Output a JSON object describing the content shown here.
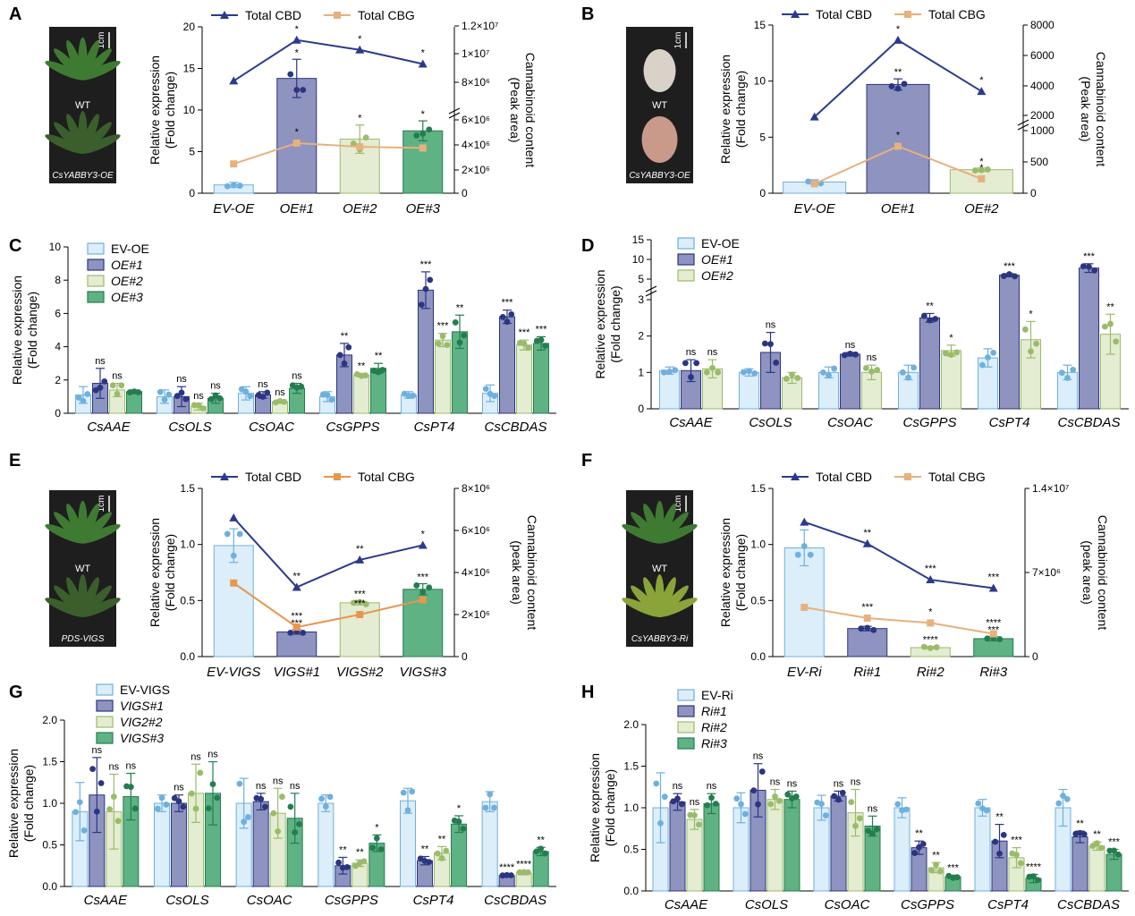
{
  "colors": {
    "cbd_line": "#2b3a8c",
    "cbg_line": "#e7b17d",
    "cbg_line_EF": "#e8964f",
    "ev": "#dbeefa",
    "ev_edge": "#6fb0dd",
    "g1": "#8e93bf",
    "g1_edge": "#2b3580",
    "g2": "#e4ecd2",
    "g2_edge": "#9bbb6a",
    "g3": "#5fb283",
    "g3_edge": "#237d4f",
    "photo_bg": "#1e1e1e",
    "leaf": "#3f7a33"
  },
  "icons": {
    "scale_bar": "scale-bar-icon",
    "plant_photo": "plant-photo-icon"
  },
  "labels": {
    "total_cbd": "Total CBD",
    "total_cbg": "Total CBG",
    "rel_expr": "Relative expression",
    "fold_change": "(Fold change)",
    "cannabinoid_content": "Cannabinoid content",
    "peak_area_A": "(Peak area)",
    "peak_area_E": "(peak area)",
    "scale": "1cm"
  },
  "chart_data": [
    {
      "panel": "A",
      "type": "bar",
      "photo_labels": [
        "WT",
        "CsYABBY3-OE"
      ],
      "categories": [
        "EV-OE",
        "OE#1",
        "OE#2",
        "OE#3"
      ],
      "ylabel": "Relative expression (Fold change)",
      "y2label": "Cannabinoid content (Peak area)",
      "ylim": [
        0,
        20
      ],
      "yticks": [
        0,
        5,
        10,
        15,
        20
      ],
      "y2ticks": [
        "0",
        "2×10⁶",
        "4×10⁶",
        "6×10⁶",
        "8×10⁶",
        "1×10⁷",
        "1.2×10⁷"
      ],
      "y2_axis_break": "6×10⁶–8×10⁶",
      "bars": {
        "values": [
          1.0,
          13.8,
          6.5,
          7.5
        ],
        "errors": [
          0.3,
          2.3,
          1.7,
          1.2
        ],
        "sig": [
          "",
          "*",
          "*",
          "*"
        ]
      },
      "series": [
        {
          "name": "Total CBD",
          "values": [
            8100000,
            11000000,
            10300000,
            9300000
          ],
          "sig": [
            "",
            "*",
            "*",
            "*"
          ]
        },
        {
          "name": "Total CBG",
          "values": [
            2400000,
            4100000,
            3800000,
            3700000
          ],
          "sig": [
            "",
            "*",
            "",
            ""
          ]
        }
      ]
    },
    {
      "panel": "B",
      "type": "bar",
      "photo_labels": [
        "WT",
        "CsYABBY3-OE"
      ],
      "categories": [
        "EV-OE",
        "OE#1",
        "OE#2"
      ],
      "ylabel": "Relative expression (Fold change)",
      "y2label": "Cannabinoid content (Peak area)",
      "ylim": [
        0,
        15
      ],
      "yticks": [
        0,
        5,
        10,
        15
      ],
      "y2ticks": [
        "0",
        "500",
        "1000",
        "2000",
        "4000",
        "6000",
        "8000"
      ],
      "y2_axis_break": "1000–2000",
      "bars": {
        "values": [
          1.0,
          9.7,
          2.1
        ],
        "errors": [
          0.2,
          0.5,
          0.15
        ],
        "sig": [
          "",
          "**",
          "*"
        ]
      },
      "series": [
        {
          "name": "Total CBD",
          "values": [
            1900,
            7000,
            3600
          ],
          "sig": [
            "",
            "*",
            "*"
          ]
        },
        {
          "name": "Total CBG",
          "values": [
            150,
            750,
            230
          ],
          "sig": [
            "",
            "*",
            "*"
          ]
        }
      ]
    },
    {
      "panel": "C",
      "type": "bar",
      "categories": [
        "CsAAE",
        "CsOLS",
        "CsOAC",
        "CsGPPS",
        "CsPT4",
        "CsCBDAS"
      ],
      "ylabel": "Relative expression (Fold change)",
      "ylim": [
        0,
        10
      ],
      "yticks": [
        0,
        2,
        4,
        6,
        8,
        10
      ],
      "series": [
        {
          "name": "EV-OE",
          "values": [
            1.1,
            1.0,
            1.2,
            1.0,
            1.1,
            1.2
          ],
          "errors": [
            0.5,
            0.4,
            0.4,
            0.3,
            0.2,
            0.5
          ],
          "sig": [
            "",
            "",
            "",
            "",
            "",
            ""
          ]
        },
        {
          "name": "OE#1",
          "values": [
            1.8,
            1.0,
            1.1,
            3.5,
            7.4,
            5.8
          ],
          "errors": [
            0.9,
            0.6,
            0.2,
            0.7,
            1.1,
            0.4
          ],
          "sig": [
            "ns",
            "ns",
            "ns",
            "**",
            "***",
            "***"
          ]
        },
        {
          "name": "OE#2",
          "values": [
            1.4,
            0.4,
            0.7,
            2.3,
            4.4,
            4.1
          ],
          "errors": [
            0.4,
            0.2,
            0.1,
            0.1,
            0.4,
            0.3
          ],
          "sig": [
            "ns",
            "ns",
            "ns",
            "**",
            "***",
            "***"
          ]
        },
        {
          "name": "OE#3",
          "values": [
            1.3,
            0.9,
            1.5,
            2.7,
            4.9,
            4.2
          ],
          "errors": [
            0.1,
            0.3,
            0.3,
            0.3,
            1.0,
            0.4
          ],
          "sig": [
            "",
            "ns",
            "ns",
            "**",
            "**",
            "***"
          ]
        }
      ]
    },
    {
      "panel": "D",
      "type": "bar",
      "categories": [
        "CsAAE",
        "CsOLS",
        "CsOAC",
        "CsGPPS",
        "CsPT4",
        "CsCBDAS"
      ],
      "ylabel": "Relative expression (Fold change)",
      "ylim": [
        0,
        15
      ],
      "yticks": [
        0,
        1,
        2,
        3,
        5,
        10,
        15
      ],
      "y_axis_break": "3–5",
      "series": [
        {
          "name": "EV-OE",
          "values": [
            1.05,
            1.0,
            1.0,
            1.0,
            1.4,
            1.0
          ],
          "errors": [
            0.1,
            0.1,
            0.15,
            0.2,
            0.25,
            0.2
          ],
          "sig": [
            "",
            "",
            "",
            "",
            "",
            ""
          ]
        },
        {
          "name": "OE#1",
          "values": [
            1.05,
            1.55,
            1.5,
            2.5,
            6.0,
            7.8
          ],
          "errors": [
            0.3,
            0.55,
            0.05,
            0.12,
            0.4,
            1.1
          ],
          "sig": [
            "ns",
            "ns",
            "ns",
            "**",
            "***",
            "***"
          ]
        },
        {
          "name": "OE#2",
          "values": [
            1.1,
            0.85,
            1.0,
            1.6,
            1.9,
            2.05
          ],
          "errors": [
            0.25,
            0.15,
            0.2,
            0.15,
            0.5,
            0.55
          ],
          "sig": [
            "ns",
            "",
            "ns",
            "*",
            "*",
            "**"
          ]
        }
      ]
    },
    {
      "panel": "E",
      "type": "bar",
      "photo_labels": [
        "WT",
        "PDS-VIGS"
      ],
      "categories": [
        "EV-VIGS",
        "VIGS#1",
        "VIGS#2",
        "VIGS#3"
      ],
      "ylabel": "Relative expression (Fold change)",
      "y2label": "Cannabinoid content (peak area)",
      "ylim": [
        0,
        1.5
      ],
      "yticks": [
        0,
        0.5,
        1.0,
        1.5
      ],
      "y2ticks": [
        "0",
        "2×10⁶",
        "4×10⁶",
        "6×10⁶",
        "8×10⁶"
      ],
      "y2lim": [
        0,
        8000000
      ],
      "bars": {
        "values": [
          0.99,
          0.22,
          0.48,
          0.6
        ],
        "errors": [
          0.15,
          0.02,
          0.02,
          0.05
        ],
        "sig": [
          "",
          "***",
          "***",
          "***"
        ]
      },
      "series": [
        {
          "name": "Total CBD",
          "values": [
            6600000,
            3300000,
            4600000,
            5300000
          ],
          "sig": [
            "",
            "**",
            "**",
            "*"
          ]
        },
        {
          "name": "Total CBG",
          "values": [
            3500000,
            1400000,
            2000000,
            2700000
          ],
          "sig": [
            "",
            "***",
            "***",
            ""
          ]
        }
      ]
    },
    {
      "panel": "F",
      "type": "bar",
      "photo_labels": [
        "WT",
        "CsYABBY3-Ri"
      ],
      "categories": [
        "EV-Ri",
        "Ri#1",
        "Ri#2",
        "Ri#3"
      ],
      "ylabel": "Relative expression (Fold change)",
      "y2label": "Cannabinoid content (peak area)",
      "ylim": [
        0,
        1.5
      ],
      "yticks": [
        0,
        0.5,
        1.0,
        1.5
      ],
      "y2ticks": [
        "0",
        "7×10⁶",
        "1.4×10⁷"
      ],
      "y2lim": [
        0,
        14000000
      ],
      "bars": {
        "values": [
          0.97,
          0.25,
          0.08,
          0.16
        ],
        "errors": [
          0.16,
          0.02,
          0.01,
          0.02
        ],
        "sig": [
          "",
          "*",
          "****",
          "***"
        ]
      },
      "series": [
        {
          "name": "Total CBD",
          "values": [
            11200000,
            9400000,
            6400000,
            5700000
          ],
          "sig": [
            "",
            "**",
            "***",
            "***"
          ]
        },
        {
          "name": "Total CBG",
          "values": [
            4100000,
            3200000,
            2800000,
            1900000
          ],
          "sig": [
            "",
            "***",
            "*",
            "****"
          ]
        }
      ]
    },
    {
      "panel": "G",
      "type": "bar",
      "categories": [
        "CsAAE",
        "CsOLS",
        "CsOAC",
        "CsGPPS",
        "CsPT4",
        "CsCBDAS"
      ],
      "ylabel": "Relative expression (Fold change)",
      "ylim": [
        0,
        2.0
      ],
      "yticks": [
        0,
        0.5,
        1.0,
        1.5,
        2.0
      ],
      "series": [
        {
          "name": "EV-VIGS",
          "values": [
            0.9,
            1.0,
            1.0,
            1.0,
            1.03,
            1.02
          ],
          "errors": [
            0.35,
            0.1,
            0.3,
            0.1,
            0.15,
            0.12
          ],
          "sig": [
            "",
            "",
            "",
            "",
            "",
            ""
          ]
        },
        {
          "name": "VIGS#1",
          "values": [
            1.1,
            1.0,
            1.02,
            0.25,
            0.31,
            0.13
          ],
          "errors": [
            0.45,
            0.1,
            0.1,
            0.1,
            0.05,
            0.01
          ],
          "sig": [
            "ns",
            "ns",
            "ns",
            "**",
            "**",
            "****"
          ]
        },
        {
          "name": "VIG2#2",
          "values": [
            0.9,
            1.12,
            0.88,
            0.28,
            0.4,
            0.16
          ],
          "errors": [
            0.45,
            0.35,
            0.3,
            0.04,
            0.08,
            0.02
          ],
          "sig": [
            "ns",
            "ns",
            "ns",
            "**",
            "**",
            "****"
          ]
        },
        {
          "name": "VIGS#3",
          "values": [
            1.08,
            1.12,
            0.82,
            0.52,
            0.75,
            0.42
          ],
          "errors": [
            0.28,
            0.38,
            0.3,
            0.1,
            0.1,
            0.05
          ],
          "sig": [
            "ns",
            "ns",
            "ns",
            "*",
            "*",
            "**"
          ]
        }
      ]
    },
    {
      "panel": "H",
      "type": "bar",
      "categories": [
        "CsAAE",
        "CsOLS",
        "CsOAC",
        "CsGPPS",
        "CsPT4",
        "CsCBDAS"
      ],
      "ylabel": "Relative expression (Fold change)",
      "ylim": [
        0,
        2.0
      ],
      "yticks": [
        0,
        0.5,
        1.0,
        1.5,
        2.0
      ],
      "series": [
        {
          "name": "EV-Ri",
          "values": [
            1.0,
            1.0,
            1.0,
            1.0,
            1.0,
            1.0
          ],
          "errors": [
            0.42,
            0.18,
            0.15,
            0.12,
            0.1,
            0.22
          ],
          "sig": [
            "",
            "",
            "",
            "",
            "",
            ""
          ]
        },
        {
          "name": "Ri#1",
          "values": [
            1.07,
            1.21,
            1.14,
            0.52,
            0.6,
            0.65
          ],
          "errors": [
            0.1,
            0.32,
            0.06,
            0.08,
            0.2,
            0.07
          ],
          "sig": [
            "ns",
            "ns",
            "ns",
            "**",
            "**",
            "**"
          ]
        },
        {
          "name": "Ri#2",
          "values": [
            0.86,
            1.1,
            0.94,
            0.28,
            0.4,
            0.54
          ],
          "errors": [
            0.12,
            0.12,
            0.28,
            0.06,
            0.12,
            0.05
          ],
          "sig": [
            "ns",
            "ns",
            "ns",
            "**",
            "***",
            "**"
          ]
        },
        {
          "name": "Ri#3",
          "values": [
            1.05,
            1.1,
            0.78,
            0.17,
            0.15,
            0.44
          ],
          "errors": [
            0.12,
            0.1,
            0.12,
            0.02,
            0.05,
            0.06
          ],
          "sig": [
            "ns",
            "ns",
            "ns",
            "***",
            "****",
            "***"
          ]
        }
      ]
    }
  ]
}
